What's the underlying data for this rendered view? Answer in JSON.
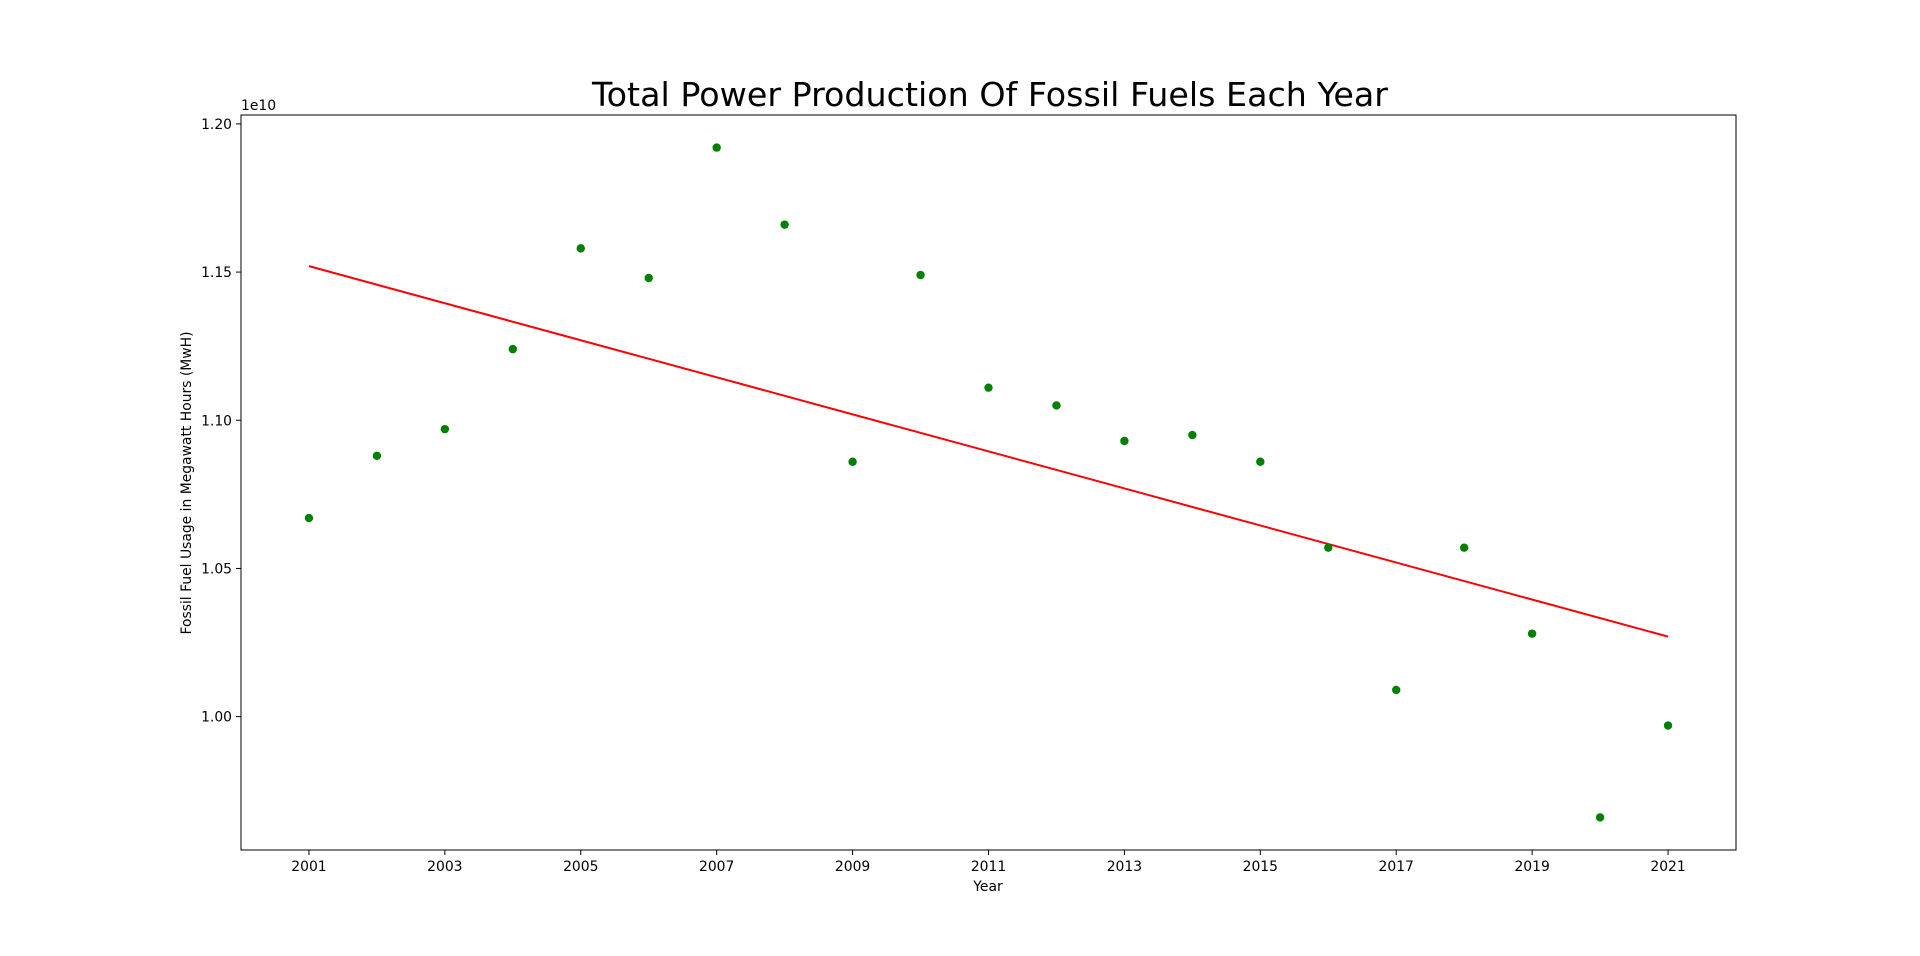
{
  "chart_data": {
    "type": "scatter",
    "title": "Total Power Production Of Fossil Fuels Each Year",
    "xlabel": "Year",
    "ylabel": "Fossil Fuel Usage in Megawatt Hours (MwH)",
    "y_offset_label": "1e10",
    "xlim": [
      2000,
      2022
    ],
    "ylim": [
      0.955,
      1.203
    ],
    "y_scale_note": "values in units of 1e10 MWh",
    "x_ticks": [
      2001,
      2003,
      2005,
      2007,
      2009,
      2011,
      2013,
      2015,
      2017,
      2019,
      2021
    ],
    "x_tick_labels": [
      "2001",
      "2003",
      "2005",
      "2007",
      "2009",
      "2011",
      "2013",
      "2015",
      "2017",
      "2019",
      "2021"
    ],
    "y_ticks": [
      1.0,
      1.05,
      1.1,
      1.15,
      1.2
    ],
    "y_tick_labels": [
      "1.00",
      "1.05",
      "1.10",
      "1.15",
      "1.20"
    ],
    "grid": false,
    "legend": "none",
    "series": [
      {
        "kind": "scatter",
        "color": "#008000",
        "x": [
          2001,
          2002,
          2003,
          2004,
          2005,
          2006,
          2007,
          2008,
          2009,
          2010,
          2011,
          2012,
          2013,
          2014,
          2015,
          2016,
          2017,
          2018,
          2019,
          2020,
          2021
        ],
        "y": [
          1.067,
          1.088,
          1.097,
          1.124,
          1.158,
          1.148,
          1.192,
          1.166,
          1.086,
          1.149,
          1.111,
          1.105,
          1.093,
          1.095,
          1.086,
          1.057,
          1.009,
          1.057,
          1.028,
          0.966,
          0.997
        ]
      },
      {
        "kind": "line",
        "color": "#ff0000",
        "x": [
          2001,
          2021
        ],
        "y": [
          1.152,
          1.027
        ]
      }
    ]
  }
}
